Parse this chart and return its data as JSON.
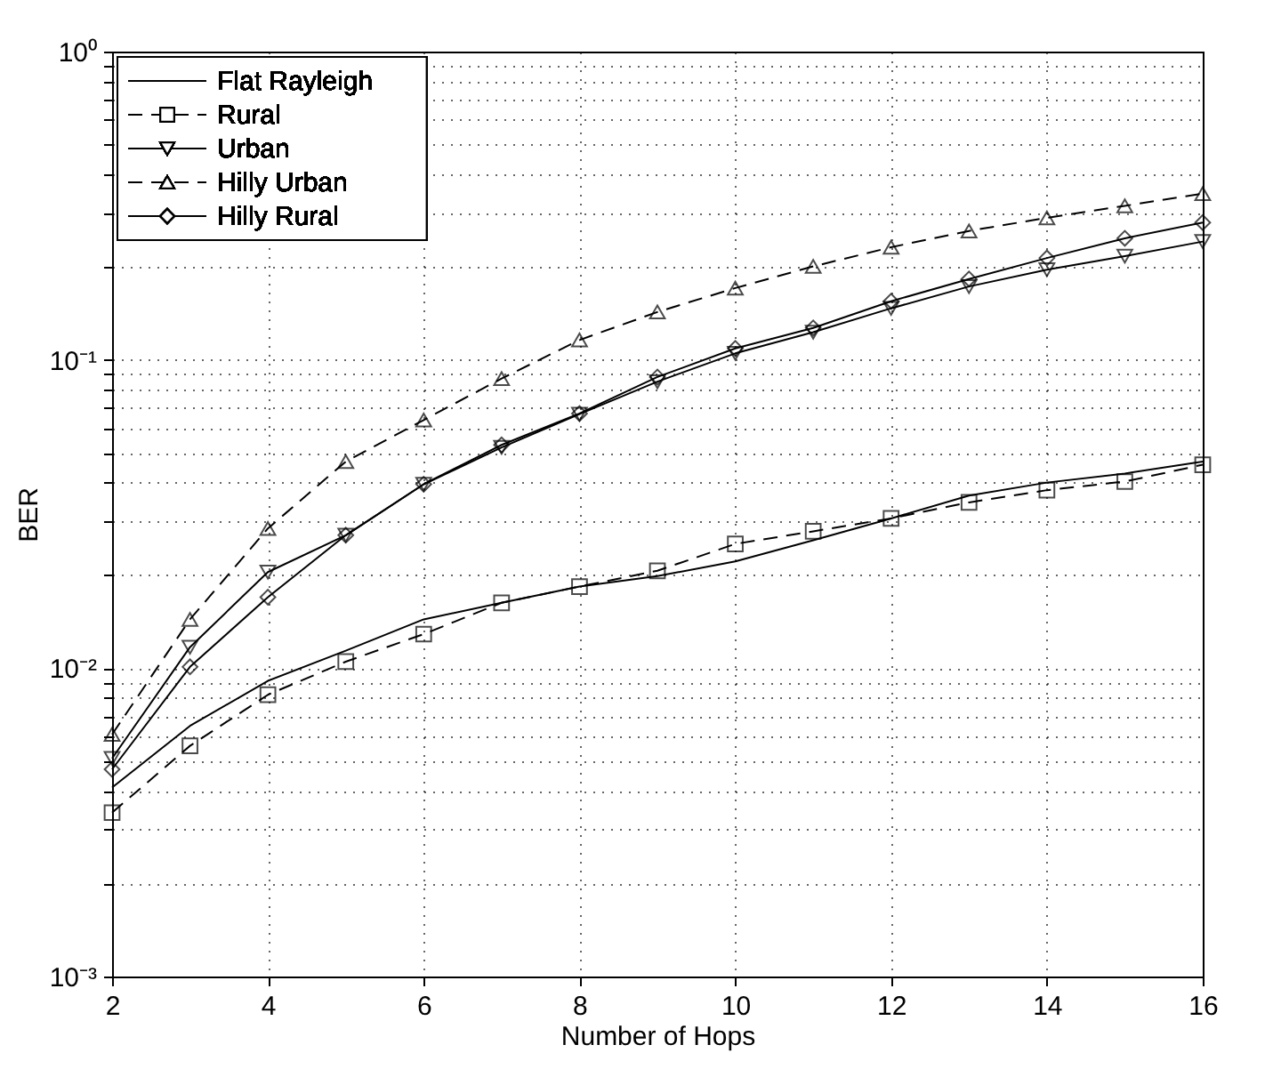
{
  "chart_data": {
    "type": "line",
    "xlabel": "Number of Hops",
    "ylabel": "BER",
    "x": [
      2,
      3,
      4,
      5,
      6,
      7,
      8,
      9,
      10,
      11,
      12,
      13,
      14,
      15,
      16
    ],
    "series": [
      {
        "name": "Flat Rayleigh",
        "color": "#000000",
        "marker": "none",
        "line_style": "solid",
        "values": [
          0.0041,
          0.0065,
          0.0091,
          0.0114,
          0.0144,
          0.0163,
          0.0184,
          0.0199,
          0.0222,
          0.026,
          0.0306,
          0.0363,
          0.04,
          0.0428,
          0.0468
        ]
      },
      {
        "name": "Rural",
        "color": "#000000",
        "marker": "square",
        "line_style": "dashed",
        "values": [
          0.0034,
          0.0056,
          0.0082,
          0.0105,
          0.0129,
          0.0163,
          0.0184,
          0.0207,
          0.0253,
          0.0278,
          0.0306,
          0.0345,
          0.0378,
          0.0403,
          0.0457
        ]
      },
      {
        "name": "Urban",
        "color": "#000000",
        "marker": "triangle-down",
        "line_style": "solid",
        "values": [
          0.0051,
          0.0117,
          0.0205,
          0.027,
          0.0395,
          0.052,
          0.0667,
          0.085,
          0.105,
          0.123,
          0.147,
          0.173,
          0.196,
          0.217,
          0.242
        ]
      },
      {
        "name": "Hilly Urban",
        "color": "#000000",
        "marker": "triangle",
        "line_style": "dashed",
        "values": [
          0.0061,
          0.0144,
          0.0284,
          0.0468,
          0.0638,
          0.087,
          0.116,
          0.143,
          0.171,
          0.201,
          0.232,
          0.262,
          0.289,
          0.316,
          0.346
        ]
      },
      {
        "name": "Hilly Rural",
        "color": "#000000",
        "marker": "diamond",
        "line_style": "solid",
        "values": [
          0.0047,
          0.0101,
          0.017,
          0.027,
          0.0395,
          0.053,
          0.067,
          0.088,
          0.109,
          0.127,
          0.155,
          0.183,
          0.214,
          0.248,
          0.279
        ]
      }
    ],
    "log": "y",
    "grid": true,
    "legend": "top left",
    "xlim": [
      2,
      16
    ],
    "xticks": [
      2,
      4,
      6,
      8,
      10,
      12,
      14,
      16
    ],
    "ylim": [
      0.001,
      1
    ],
    "yticks": [
      {
        "value": 0.001,
        "label": "10⁻³"
      },
      {
        "value": 0.002,
        "label": null
      },
      {
        "value": 0.003,
        "label": null
      },
      {
        "value": 0.004,
        "label": null
      },
      {
        "value": 0.005,
        "label": null
      },
      {
        "value": 0.006,
        "label": null
      },
      {
        "value": 0.007,
        "label": null
      },
      {
        "value": 0.008,
        "label": null
      },
      {
        "value": 0.009,
        "label": null
      },
      {
        "value": 0.01,
        "label": "10⁻²"
      },
      {
        "value": 0.02,
        "label": null
      },
      {
        "value": 0.03,
        "label": null
      },
      {
        "value": 0.04,
        "label": null
      },
      {
        "value": 0.05,
        "label": null
      },
      {
        "value": 0.06,
        "label": null
      },
      {
        "value": 0.07,
        "label": null
      },
      {
        "value": 0.08,
        "label": null
      },
      {
        "value": 0.09,
        "label": null
      },
      {
        "value": 0.1,
        "label": "10⁻¹"
      },
      {
        "value": 0.2,
        "label": null
      },
      {
        "value": 0.3,
        "label": null
      },
      {
        "value": 0.4,
        "label": null
      },
      {
        "value": 0.5,
        "label": null
      },
      {
        "value": 0.6,
        "label": null
      },
      {
        "value": 0.7,
        "label": null
      },
      {
        "value": 0.8,
        "label": null
      },
      {
        "value": 0.9,
        "label": null
      },
      {
        "value": 1,
        "label": "10⁰"
      }
    ]
  }
}
